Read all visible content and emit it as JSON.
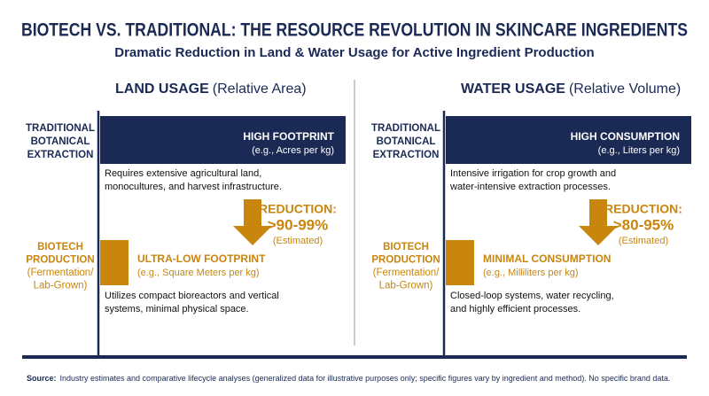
{
  "title": "BIOTECH VS. TRADITIONAL: THE RESOURCE REVOLUTION IN SKINCARE INGREDIENTS",
  "subtitle": "Dramatic Reduction in Land & Water Usage for Active Ingredient Production",
  "panels": [
    {
      "header": "LAND USAGE",
      "header_note": "(Relative Area)",
      "traditional_label": [
        "TRADITIONAL",
        "BOTANICAL",
        "EXTRACTION"
      ],
      "traditional_title": "HIGH FOOTPRINT",
      "traditional_note": "(e.g., Acres per kg)",
      "traditional_desc": [
        "Requires extensive agricultural land,",
        "monocultures, and harvest infrastructure."
      ],
      "reduction_label": "REDUCTION:",
      "reduction_value": ">90-99%",
      "reduction_note": "(Estimated)",
      "biotech_label": [
        "BIOTECH",
        "PRODUCTION",
        "(Fermentation/",
        "Lab-Grown)"
      ],
      "biotech_title": "ULTRA-LOW FOOTPRINT",
      "biotech_note": "(e.g., Square Meters per kg)",
      "biotech_desc": [
        "Utilizes compact bioreactors and vertical",
        "systems, minimal physical space."
      ]
    },
    {
      "header": "WATER USAGE",
      "header_note": "(Relative Volume)",
      "traditional_label": [
        "TRADITIONAL",
        "BOTANICAL",
        "EXTRACTION"
      ],
      "traditional_title": "HIGH CONSUMPTION",
      "traditional_note": "(e.g., Liters per kg)",
      "traditional_desc": [
        "Intensive irrigation for crop growth and",
        "water-intensive extraction processes."
      ],
      "reduction_label": "REDUCTION:",
      "reduction_value": ">80-95%",
      "reduction_note": "(Estimated)",
      "biotech_label": [
        "BIOTECH",
        "PRODUCTION",
        "(Fermentation/",
        "Lab-Grown)"
      ],
      "biotech_title": "MINIMAL CONSUMPTION",
      "biotech_note": "(e.g., Milliliters per kg)",
      "biotech_desc": [
        "Closed-loop systems, water recycling,",
        "and highly efficient processes."
      ]
    }
  ],
  "source_label": "Source:",
  "source_text": "Industry estimates and comparative lifecycle analyses (generalized data for illustrative purposes only; specific figures vary by ingredient and method). No specific brand data."
}
